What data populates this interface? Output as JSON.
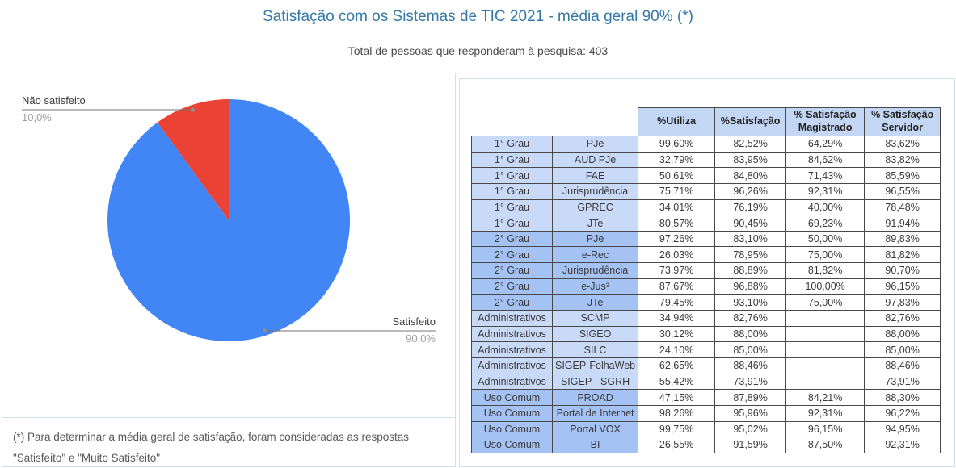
{
  "page": {
    "title": "Satisfação com os Sistemas de TIC 2021 - média geral 90% (*)",
    "subtitle": "Total de pessoas que responderam à pesquisa: 403",
    "footnote": "(*) Para determinar a média geral de satisfação, foram consideradas as respostas \"Satisfeito\" e \"Muito Satisfeito\""
  },
  "chart_data": [
    {
      "type": "pie",
      "title": "Satisfação com os Sistemas de TIC 2021 - média geral 90% (*)",
      "labels": [
        "Satisfeito",
        "Não satisfeito"
      ],
      "values": [
        90.0,
        10.0
      ],
      "value_labels": [
        "90,0%",
        "10,0%"
      ],
      "colors": [
        "#4285f4",
        "#ea4335"
      ],
      "legend_position": "outside-callouts",
      "start_angle_deg": 0,
      "direction": "clockwise"
    },
    {
      "type": "table",
      "columns": [
        "",
        "",
        "%Utiliza",
        "%Satisfação",
        "% Satisfação Magistrado",
        "% Satisfação Servidor"
      ],
      "dark_groups": [
        "2° Grau",
        "Uso Comum"
      ],
      "rows": [
        [
          "1° Grau",
          "PJe",
          "99,60%",
          "82,52%",
          "64,29%",
          "83,62%"
        ],
        [
          "1° Grau",
          "AUD PJe",
          "32,79%",
          "83,95%",
          "84,62%",
          "83,82%"
        ],
        [
          "1° Grau",
          "FAE",
          "50,61%",
          "84,80%",
          "71,43%",
          "85,59%"
        ],
        [
          "1° Grau",
          "Jurisprudência",
          "75,71%",
          "96,26%",
          "92,31%",
          "96,55%"
        ],
        [
          "1° Grau",
          "GPREC",
          "34,01%",
          "76,19%",
          "40,00%",
          "78,48%"
        ],
        [
          "1° Grau",
          "JTe",
          "80,57%",
          "90,45%",
          "69,23%",
          "91,94%"
        ],
        [
          "2° Grau",
          "PJe",
          "97,26%",
          "83,10%",
          "50,00%",
          "89,83%"
        ],
        [
          "2° Grau",
          "e-Rec",
          "26,03%",
          "78,95%",
          "75,00%",
          "81,82%"
        ],
        [
          "2° Grau",
          "Jurisprudência",
          "73,97%",
          "88,89%",
          "81,82%",
          "90,70%"
        ],
        [
          "2° Grau",
          "e-Jus²",
          "87,67%",
          "96,88%",
          "100,00%",
          "96,15%"
        ],
        [
          "2° Grau",
          "JTe",
          "79,45%",
          "93,10%",
          "75,00%",
          "97,83%"
        ],
        [
          "Administrativos",
          "SCMP",
          "34,94%",
          "82,76%",
          "",
          "82,76%"
        ],
        [
          "Administrativos",
          "SIGEO",
          "30,12%",
          "88,00%",
          "",
          "88,00%"
        ],
        [
          "Administrativos",
          "SILC",
          "24,10%",
          "85,00%",
          "",
          "85,00%"
        ],
        [
          "Administrativos",
          "SIGEP-FolhaWeb",
          "62,65%",
          "88,46%",
          "",
          "88,46%"
        ],
        [
          "Administrativos",
          "SIGEP - SGRH",
          "55,42%",
          "73,91%",
          "",
          "73,91%"
        ],
        [
          "Uso Comum",
          "PROAD",
          "47,15%",
          "87,89%",
          "84,21%",
          "88,30%"
        ],
        [
          "Uso Comum",
          "Portal de Internet",
          "98,26%",
          "95,96%",
          "92,31%",
          "96,22%"
        ],
        [
          "Uso Comum",
          "Portal VOX",
          "99,75%",
          "95,02%",
          "96,15%",
          "94,95%"
        ],
        [
          "Uso Comum",
          "BI",
          "26,55%",
          "91,59%",
          "87,50%",
          "92,31%"
        ]
      ]
    }
  ],
  "colors": {
    "title_blue": "#3579a7",
    "pie_satisfied": "#4285f4",
    "pie_unsatisfied": "#ea4335",
    "row_group_light": "#c9daf8",
    "row_group_dark": "#a4c2f4",
    "header_fill": "#c3d7f5",
    "panel_border": "#cfe0f1"
  }
}
